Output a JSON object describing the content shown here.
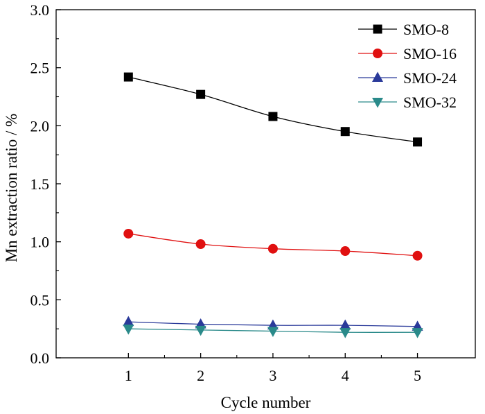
{
  "chart_data": {
    "type": "line",
    "title": "",
    "xlabel": "Cycle number",
    "ylabel": "Mn extraction ratio / %",
    "x": [
      1,
      2,
      3,
      4,
      5
    ],
    "xlim": [
      0,
      5.8
    ],
    "ylim": [
      0,
      3.0
    ],
    "x_ticks": [
      "1",
      "2",
      "3",
      "4",
      "5"
    ],
    "y_ticks": [
      "0.0",
      "0.5",
      "1.0",
      "1.5",
      "2.0",
      "2.5",
      "3.0"
    ],
    "grid": false,
    "legend_position": "top-right",
    "series": [
      {
        "name": "SMO-8",
        "values": [
          2.42,
          2.27,
          2.08,
          1.95,
          1.86
        ],
        "color": "#000000",
        "marker": "square"
      },
      {
        "name": "SMO-16",
        "values": [
          1.07,
          0.98,
          0.94,
          0.92,
          0.88
        ],
        "color": "#e01010",
        "marker": "circle"
      },
      {
        "name": "SMO-24",
        "values": [
          0.31,
          0.29,
          0.28,
          0.28,
          0.27
        ],
        "color": "#2a3a9a",
        "marker": "triangle-up"
      },
      {
        "name": "SMO-32",
        "values": [
          0.25,
          0.24,
          0.23,
          0.22,
          0.22
        ],
        "color": "#2a8a8a",
        "marker": "triangle-down"
      }
    ]
  }
}
